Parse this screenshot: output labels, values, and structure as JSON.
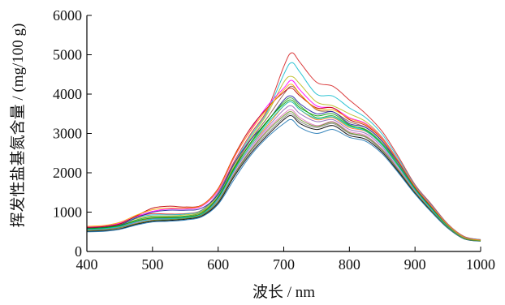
{
  "chart_data": {
    "type": "line",
    "title": "",
    "xlabel": "波长 / nm",
    "ylabel": "挥发性盐基氮含量 / (mg/100 g)",
    "xlim": [
      400,
      1000
    ],
    "ylim": [
      0,
      6000
    ],
    "xticks": [
      400,
      500,
      600,
      700,
      800,
      900,
      1000
    ],
    "yticks": [
      0,
      1000,
      2000,
      3000,
      4000,
      5000,
      6000
    ],
    "xtick_labels": [
      "400",
      "500",
      "600",
      "700",
      "800",
      "900",
      "1000"
    ],
    "ytick_labels": [
      "0",
      "1000",
      "2000",
      "3000",
      "4000",
      "5000",
      "6000"
    ],
    "grid": false,
    "legend": "none",
    "x": [
      400,
      425,
      450,
      475,
      500,
      525,
      550,
      575,
      600,
      625,
      650,
      675,
      700,
      712,
      725,
      750,
      775,
      800,
      825,
      850,
      875,
      900,
      925,
      950,
      975,
      1000
    ],
    "series": [
      {
        "color": "#d62728",
        "values": [
          600,
          620,
          700,
          880,
          960,
          950,
          960,
          1050,
          1500,
          2300,
          3000,
          3600,
          4700,
          5050,
          4800,
          4300,
          4200,
          3850,
          3500,
          3050,
          2400,
          1700,
          1200,
          700,
          380,
          300
        ]
      },
      {
        "color": "#17becf",
        "values": [
          600,
          610,
          690,
          860,
          930,
          930,
          950,
          1040,
          1480,
          2250,
          2950,
          3550,
          4500,
          4800,
          4550,
          4000,
          3950,
          3650,
          3400,
          2980,
          2350,
          1680,
          1180,
          690,
          370,
          300
        ]
      },
      {
        "color": "#bcbd22",
        "values": [
          580,
          600,
          680,
          830,
          900,
          900,
          930,
          1020,
          1450,
          2200,
          2900,
          3500,
          4300,
          4450,
          4250,
          3800,
          3700,
          3500,
          3300,
          2900,
          2300,
          1650,
          1150,
          680,
          360,
          290
        ]
      },
      {
        "color": "#8c564b",
        "values": [
          560,
          580,
          640,
          760,
          830,
          840,
          860,
          950,
          1350,
          2150,
          2850,
          3400,
          4000,
          4200,
          4000,
          3600,
          3550,
          3300,
          3150,
          2800,
          2200,
          1600,
          1100,
          650,
          350,
          280
        ]
      },
      {
        "color": "#1f1f9f",
        "values": [
          590,
          610,
          670,
          850,
          1000,
          1050,
          1050,
          1100,
          1450,
          2250,
          2850,
          3300,
          3850,
          3950,
          3750,
          3500,
          3550,
          3250,
          3150,
          2800,
          2250,
          1620,
          1130,
          660,
          360,
          290
        ]
      },
      {
        "color": "#2ca02c",
        "values": [
          570,
          590,
          650,
          800,
          880,
          880,
          900,
          1000,
          1400,
          2150,
          2750,
          3300,
          3800,
          3900,
          3700,
          3400,
          3450,
          3200,
          3100,
          2750,
          2200,
          1600,
          1100,
          650,
          350,
          280
        ]
      },
      {
        "color": "#ff7f0e",
        "values": [
          550,
          560,
          620,
          760,
          850,
          860,
          880,
          980,
          1380,
          2100,
          2700,
          3200,
          3700,
          3800,
          3600,
          3350,
          3400,
          3150,
          3050,
          2700,
          2150,
          1580,
          1080,
          640,
          340,
          280
        ]
      },
      {
        "color": "#9467bd",
        "values": [
          540,
          560,
          610,
          740,
          830,
          850,
          870,
          960,
          1350,
          2050,
          2650,
          3150,
          3600,
          3700,
          3500,
          3300,
          3350,
          3100,
          3000,
          2650,
          2100,
          1550,
          1060,
          630,
          340,
          275
        ]
      },
      {
        "color": "#e377c2",
        "values": [
          530,
          540,
          600,
          720,
          800,
          820,
          850,
          940,
          1300,
          2000,
          2600,
          3100,
          3500,
          3600,
          3400,
          3200,
          3300,
          3050,
          2950,
          2600,
          2080,
          1530,
          1050,
          620,
          330,
          270
        ]
      },
      {
        "color": "#7f7f7f",
        "values": [
          520,
          530,
          580,
          700,
          780,
          800,
          830,
          920,
          1250,
          1950,
          2550,
          3000,
          3400,
          3500,
          3300,
          3150,
          3250,
          3000,
          2900,
          2550,
          2050,
          1500,
          1030,
          610,
          330,
          270
        ]
      },
      {
        "color": "#000000",
        "values": [
          510,
          520,
          570,
          690,
          770,
          790,
          820,
          900,
          1230,
          1920,
          2500,
          2950,
          3350,
          3450,
          3250,
          3100,
          3200,
          2950,
          2850,
          2520,
          2020,
          1480,
          1020,
          600,
          320,
          265
        ]
      },
      {
        "color": "#1f77b4",
        "values": [
          500,
          510,
          560,
          670,
          750,
          770,
          800,
          880,
          1200,
          1850,
          2450,
          2900,
          3250,
          3350,
          3150,
          3000,
          3100,
          2900,
          2800,
          2480,
          1990,
          1460,
          1000,
          590,
          320,
          260
        ]
      },
      {
        "color": "#ff00ff",
        "values": [
          620,
          640,
          720,
          890,
          1020,
          1080,
          1080,
          1150,
          1550,
          2400,
          3100,
          3700,
          4150,
          4350,
          4100,
          3700,
          3650,
          3400,
          3250,
          2880,
          2300,
          1660,
          1160,
          680,
          360,
          290
        ]
      },
      {
        "color": "#00a000",
        "values": [
          580,
          600,
          660,
          780,
          850,
          860,
          880,
          970,
          1380,
          2120,
          2780,
          3320,
          3750,
          3850,
          3650,
          3450,
          3500,
          3220,
          3080,
          2720,
          2160,
          1580,
          1090,
          640,
          345,
          280
        ]
      },
      {
        "color": "#c00000",
        "values": [
          610,
          630,
          700,
          900,
          1100,
          1150,
          1130,
          1180,
          1600,
          2450,
          3150,
          3650,
          4050,
          4150,
          3950,
          3650,
          3650,
          3350,
          3200,
          2850,
          2280,
          1640,
          1140,
          670,
          355,
          285
        ]
      },
      {
        "color": "#00ced1",
        "values": [
          560,
          580,
          630,
          750,
          820,
          830,
          860,
          950,
          1330,
          2080,
          2700,
          3250,
          3700,
          3800,
          3600,
          3380,
          3420,
          3180,
          3060,
          2700,
          2150,
          1570,
          1080,
          635,
          340,
          278
        ]
      },
      {
        "color": "#6b8e23",
        "values": [
          530,
          550,
          600,
          710,
          790,
          810,
          840,
          930,
          1280,
          1980,
          2580,
          3060,
          3450,
          3550,
          3350,
          3180,
          3280,
          3020,
          2920,
          2580,
          2060,
          1510,
          1040,
          615,
          330,
          268
        ]
      },
      {
        "color": "#ffa500",
        "values": [
          640,
          660,
          740,
          920,
          1060,
          1100,
          1100,
          1170,
          1580,
          2420,
          3080,
          3620,
          4100,
          4250,
          4000,
          3620,
          3600,
          3380,
          3230,
          2860,
          2290,
          1650,
          1150,
          675,
          358,
          288
        ]
      }
    ]
  }
}
